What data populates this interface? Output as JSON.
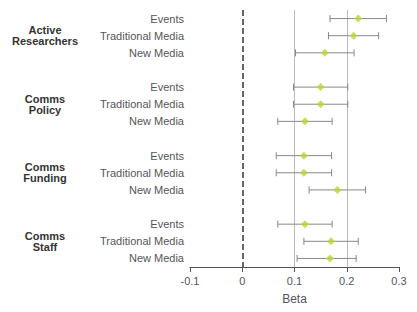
{
  "chart_data": {
    "type": "forest",
    "xlabel": "Beta",
    "marker": "diamond",
    "xlim": [
      -0.1,
      0.3
    ],
    "xticks": [
      -0.1,
      0,
      0.1,
      0.2,
      0.3
    ],
    "reference_lines": [
      {
        "value": 0,
        "line_style": "dashed"
      },
      {
        "value": 0.1,
        "line_style": "solid"
      },
      {
        "value": 0.2,
        "line_style": "solid"
      }
    ],
    "groups": [
      {
        "label": "Active\nResearchers",
        "categories": [
          "Events",
          "Traditional Media",
          "New Media"
        ],
        "values": [
          0.222,
          0.213,
          0.158
        ],
        "ci_lo": [
          0.168,
          0.165,
          0.102
        ],
        "ci_hi": [
          0.276,
          0.261,
          0.214
        ]
      },
      {
        "label": "Comms\nPolicy",
        "categories": [
          "Events",
          "Traditional Media",
          "New Media"
        ],
        "values": [
          0.15,
          0.15,
          0.12
        ],
        "ci_lo": [
          0.098,
          0.098,
          0.068
        ],
        "ci_hi": [
          0.202,
          0.202,
          0.172
        ]
      },
      {
        "label": "Comms\nFunding",
        "categories": [
          "Events",
          "Traditional Media",
          "New Media"
        ],
        "values": [
          0.118,
          0.118,
          0.182
        ],
        "ci_lo": [
          0.065,
          0.065,
          0.128
        ],
        "ci_hi": [
          0.171,
          0.171,
          0.236
        ]
      },
      {
        "label": "Comms\nStaff",
        "categories": [
          "Events",
          "Traditional Media",
          "New Media"
        ],
        "values": [
          0.12,
          0.17,
          0.168
        ],
        "ci_lo": [
          0.068,
          0.118,
          0.105
        ],
        "ci_hi": [
          0.172,
          0.222,
          0.218
        ]
      }
    ]
  }
}
